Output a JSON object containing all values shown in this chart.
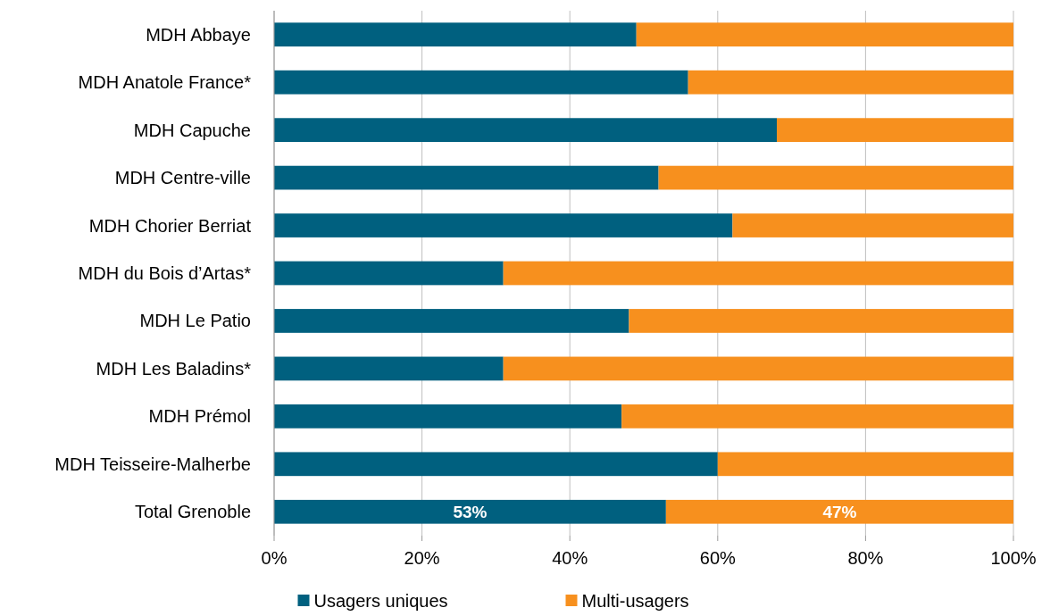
{
  "chart_data": {
    "type": "bar",
    "orientation": "horizontal",
    "stacked": true,
    "categories": [
      "MDH Abbaye",
      "MDH Anatole France*",
      "MDH Capuche",
      "MDH Centre-ville",
      "MDH Chorier Berriat",
      "MDH du Bois d’Artas*",
      "MDH Le Patio",
      "MDH Les Baladins*",
      "MDH Prémol",
      "MDH Teisseire-Malherbe",
      "Total Grenoble"
    ],
    "series": [
      {
        "name": "Usagers uniques",
        "color": "#00607f",
        "values": [
          49,
          56,
          68,
          52,
          62,
          31,
          48,
          31,
          47,
          60,
          53
        ],
        "value_labels": [
          null,
          null,
          null,
          null,
          null,
          null,
          null,
          null,
          null,
          null,
          "53%"
        ]
      },
      {
        "name": "Multi-usagers",
        "color": "#f7901e",
        "values": [
          51,
          44,
          32,
          48,
          38,
          69,
          52,
          69,
          53,
          40,
          47
        ],
        "value_labels": [
          null,
          null,
          null,
          null,
          null,
          null,
          null,
          null,
          null,
          null,
          "47%"
        ]
      }
    ],
    "xlim": [
      0,
      100
    ],
    "xticks": [
      {
        "value": 0,
        "label": "0%"
      },
      {
        "value": 20,
        "label": "20%"
      },
      {
        "value": 40,
        "label": "40%"
      },
      {
        "value": 60,
        "label": "60%"
      },
      {
        "value": 80,
        "label": "80%"
      },
      {
        "value": 100,
        "label": "100%"
      }
    ],
    "grid": "x",
    "legend": "bottom"
  }
}
